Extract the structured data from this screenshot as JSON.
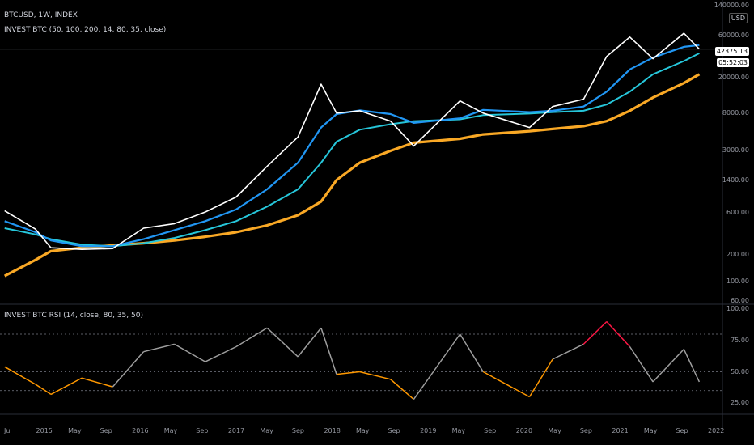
{
  "header": {
    "symbol": "BTCUSD, 1W, INDEX",
    "indicator": "INVEST BTC (50, 100, 200, 14, 80, 35, close)",
    "rsi_indicator": "INVEST BTC RSI (14, close, 80, 35, 50)"
  },
  "price_axis": {
    "top_label": "140000.00",
    "currency": "USD",
    "ticks": [
      "60000.00",
      "20000.00",
      "8000.00",
      "3000.00",
      "1400.00",
      "600.00",
      "200.00",
      "100.00",
      "60.00"
    ],
    "last_price": "42375.13",
    "countdown": "05:52:03"
  },
  "rsi_axis": {
    "ticks": [
      "100.00",
      "75.00",
      "50.00",
      "25.00"
    ]
  },
  "time_axis": {
    "labels": [
      "Jul",
      "2015",
      "May",
      "Sep",
      "2016",
      "May",
      "Sep",
      "2017",
      "May",
      "Sep",
      "2018",
      "May",
      "Sep",
      "2019",
      "May",
      "Sep",
      "2020",
      "May",
      "Sep",
      "2021",
      "May",
      "Sep",
      "2022"
    ]
  },
  "colors": {
    "background": "#000000",
    "price": "#ffffff",
    "ma50": "#2196f3",
    "ma100": "#26c6da",
    "ma200": "#f9a825",
    "rsi_neutral": "#9e9e9e",
    "rsi_overbought": "#ff1744",
    "rsi_oversold": "#4caf50",
    "rsi_mid": "#ff9800",
    "sell_signal": "#b71c1c",
    "buy_signal": "#1b5e20"
  },
  "chart_data": [
    {
      "type": "line",
      "title": "BTCUSD, 1W, INDEX",
      "x": [
        "2014-07",
        "2014-11",
        "2015-01",
        "2015-05",
        "2015-09",
        "2016-01",
        "2016-05",
        "2016-09",
        "2017-01",
        "2017-05",
        "2017-09",
        "2017-12",
        "2018-02",
        "2018-05",
        "2018-09",
        "2018-12",
        "2019-06",
        "2019-09",
        "2020-03",
        "2020-06",
        "2020-10",
        "2021-01",
        "2021-04",
        "2021-07",
        "2021-11",
        "2022-01"
      ],
      "series": [
        {
          "name": "price",
          "values": [
            630,
            390,
            240,
            230,
            235,
            400,
            450,
            610,
            900,
            2000,
            4300,
            17000,
            8000,
            8500,
            6500,
            3400,
            11000,
            8000,
            5500,
            9500,
            11500,
            35000,
            58000,
            33000,
            64000,
            42375
          ]
        },
        {
          "name": "ma50",
          "values": [
            480,
            360,
            290,
            250,
            250,
            300,
            380,
            480,
            650,
            1100,
            2200,
            5500,
            7800,
            8600,
            7800,
            6200,
            7000,
            8700,
            8200,
            8500,
            9500,
            14000,
            25000,
            34000,
            45000,
            47000
          ]
        },
        {
          "name": "ma100",
          "values": [
            400,
            340,
            300,
            260,
            250,
            270,
            310,
            380,
            480,
            700,
            1100,
            2200,
            3800,
            5200,
            6000,
            6500,
            6800,
            7600,
            7900,
            8200,
            8500,
            10000,
            14000,
            22000,
            31000,
            38000
          ]
        },
        {
          "name": "ma200",
          "values": [
            115,
            175,
            220,
            240,
            255,
            270,
            290,
            320,
            360,
            430,
            560,
            800,
            1400,
            2200,
            3000,
            3700,
            4100,
            4600,
            5000,
            5300,
            5700,
            6500,
            8500,
            12000,
            17500,
            22000
          ]
        }
      ],
      "yscale": "log",
      "ylim": [
        60,
        140000
      ]
    },
    {
      "type": "line",
      "title": "INVEST BTC RSI (14, close, 80, 35, 50)",
      "x": [
        "2014-07",
        "2014-11",
        "2015-01",
        "2015-05",
        "2015-09",
        "2016-01",
        "2016-05",
        "2016-09",
        "2017-01",
        "2017-05",
        "2017-09",
        "2017-12",
        "2018-02",
        "2018-05",
        "2018-09",
        "2018-12",
        "2019-06",
        "2019-09",
        "2020-03",
        "2020-06",
        "2020-10",
        "2021-01",
        "2021-04",
        "2021-07",
        "2021-11",
        "2022-01"
      ],
      "series": [
        {
          "name": "RSI",
          "values": [
            54,
            40,
            32,
            45,
            38,
            66,
            72,
            58,
            70,
            85,
            62,
            85,
            48,
            50,
            44,
            28,
            80,
            50,
            30,
            60,
            72,
            90,
            70,
            42,
            68,
            42
          ]
        }
      ],
      "levels": [
        80,
        50,
        35
      ],
      "ylim": [
        20,
        100
      ]
    }
  ]
}
